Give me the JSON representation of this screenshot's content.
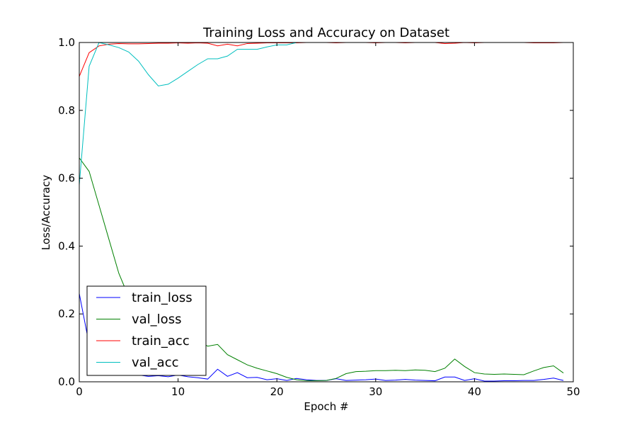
{
  "chart_data": {
    "type": "line",
    "title": "Training Loss and Accuracy on Dataset",
    "xlabel": "Epoch #",
    "ylabel": "Loss/Accuracy",
    "xlim": [
      0,
      50
    ],
    "ylim": [
      0,
      1.0
    ],
    "xticks": [
      "0",
      "10",
      "20",
      "30",
      "40",
      "50"
    ],
    "yticks": [
      "0.0",
      "0.2",
      "0.4",
      "0.6",
      "0.8",
      "1.0"
    ],
    "grid": false,
    "legend_position": "lower-left",
    "x": [
      0,
      1,
      2,
      3,
      4,
      5,
      6,
      7,
      8,
      9,
      10,
      11,
      12,
      13,
      14,
      15,
      16,
      17,
      18,
      19,
      20,
      21,
      22,
      23,
      24,
      25,
      26,
      27,
      28,
      29,
      30,
      31,
      32,
      33,
      34,
      35,
      36,
      37,
      38,
      39,
      40,
      41,
      42,
      43,
      44,
      45,
      46,
      47,
      48,
      49
    ],
    "series": [
      {
        "name": "train_loss",
        "color": "#0000ff",
        "values": [
          0.26,
          0.11,
          0.06,
          0.04,
          0.025,
          0.022,
          0.02,
          0.016,
          0.018,
          0.015,
          0.02,
          0.015,
          0.012,
          0.008,
          0.037,
          0.016,
          0.027,
          0.012,
          0.013,
          0.006,
          0.009,
          0.004,
          0.01,
          0.006,
          0.004,
          0.004,
          0.009,
          0.004,
          0.005,
          0.006,
          0.008,
          0.004,
          0.005,
          0.007,
          0.005,
          0.004,
          0.003,
          0.014,
          0.014,
          0.004,
          0.009,
          0.002,
          0.002,
          0.003,
          0.003,
          0.004,
          0.004,
          0.007,
          0.011,
          0.004
        ]
      },
      {
        "name": "val_loss",
        "color": "#008000",
        "values": [
          0.66,
          0.62,
          0.52,
          0.42,
          0.32,
          0.25,
          0.2,
          0.17,
          0.15,
          0.14,
          0.13,
          0.125,
          0.12,
          0.105,
          0.11,
          0.08,
          0.065,
          0.05,
          0.04,
          0.032,
          0.024,
          0.013,
          0.006,
          0.003,
          0.003,
          0.004,
          0.01,
          0.024,
          0.03,
          0.031,
          0.033,
          0.033,
          0.034,
          0.033,
          0.035,
          0.034,
          0.03,
          0.04,
          0.067,
          0.045,
          0.027,
          0.023,
          0.022,
          0.023,
          0.022,
          0.021,
          0.032,
          0.042,
          0.047,
          0.026
        ]
      },
      {
        "name": "train_acc",
        "color": "#ff0000",
        "values": [
          0.9,
          0.97,
          0.99,
          0.995,
          0.997,
          0.996,
          0.996,
          0.997,
          0.998,
          0.998,
          0.999,
          0.998,
          0.999,
          0.998,
          0.99,
          0.995,
          0.99,
          0.997,
          0.998,
          0.999,
          0.999,
          0.999,
          0.999,
          1.0,
          1.0,
          1.0,
          0.999,
          1.0,
          1.0,
          1.0,
          0.999,
          1.0,
          1.0,
          0.999,
          1.0,
          1.0,
          1.0,
          0.997,
          0.998,
          1.0,
          0.999,
          1.0,
          1.0,
          1.0,
          1.0,
          1.0,
          0.999,
          0.999,
          0.999,
          1.0
        ]
      },
      {
        "name": "val_acc",
        "color": "#00bfbf",
        "values": [
          0.58,
          0.93,
          1.0,
          0.993,
          0.985,
          0.972,
          0.945,
          0.905,
          0.872,
          0.877,
          0.895,
          0.915,
          0.935,
          0.952,
          0.952,
          0.96,
          0.98,
          0.98,
          0.98,
          0.987,
          0.993,
          0.993,
          1.0,
          1.0,
          1.0,
          1.0,
          1.0,
          1.0,
          1.0,
          1.0,
          1.0,
          1.0,
          1.0,
          1.0,
          1.0,
          1.0,
          1.0,
          1.0,
          1.0,
          1.0,
          1.0,
          1.0,
          1.0,
          1.0,
          1.0,
          1.0,
          1.0,
          1.0,
          1.0,
          1.0
        ]
      }
    ]
  }
}
